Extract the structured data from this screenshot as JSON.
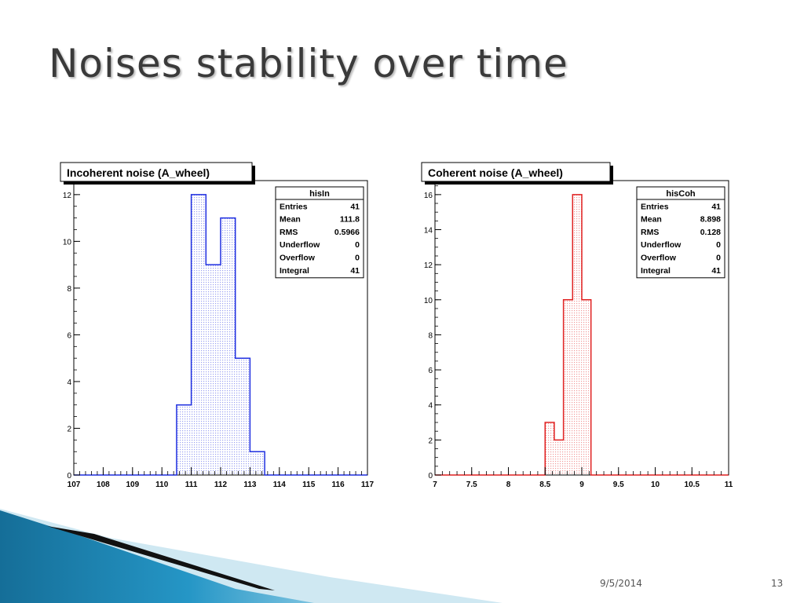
{
  "slide": {
    "title": "Noises stability over time",
    "date": "9/5/2014",
    "page_number": "13"
  },
  "colors": {
    "left_hist": "#1f2fe0",
    "right_hist": "#e02020",
    "decor_blue": "#1d87b5",
    "decor_light": "#bfe1ef"
  },
  "chart_data": [
    {
      "type": "bar",
      "title": "Incoherent noise (A_wheel)",
      "bin_edges": [
        107,
        107.5,
        108,
        108.5,
        109,
        109.5,
        110,
        110.5,
        111,
        111.5,
        112,
        112.5,
        113,
        113.5,
        114,
        114.5,
        115,
        115.5,
        116,
        116.5,
        117
      ],
      "values": [
        0,
        0,
        0,
        0,
        0,
        0,
        0,
        3,
        12,
        9,
        11,
        5,
        1,
        0,
        0,
        0,
        0,
        0,
        0,
        0
      ],
      "xlim": [
        107,
        117
      ],
      "ylim": [
        0,
        12.6
      ],
      "x_ticks": [
        "107",
        "108",
        "109",
        "110",
        "111",
        "112",
        "113",
        "114",
        "115",
        "116",
        "117"
      ],
      "y_ticks": [
        "0",
        "2",
        "4",
        "6",
        "8",
        "10",
        "12"
      ],
      "color": "#1f2fe0",
      "grid": false,
      "stats": {
        "name": "hisIn",
        "rows": [
          {
            "label": "Entries",
            "value": "41"
          },
          {
            "label": "Mean",
            "value": "111.8"
          },
          {
            "label": "RMS",
            "value": "0.5966"
          },
          {
            "label": "Underflow",
            "value": "0"
          },
          {
            "label": "Overflow",
            "value": "0"
          },
          {
            "label": "Integral",
            "value": "41"
          }
        ]
      }
    },
    {
      "type": "bar",
      "title": "Coherent noise (A_wheel)",
      "bin_edges": [
        7,
        7.125,
        7.25,
        7.375,
        7.5,
        7.625,
        7.75,
        7.875,
        8,
        8.125,
        8.25,
        8.375,
        8.5,
        8.625,
        8.75,
        8.875,
        9,
        9.125,
        9.25,
        9.375,
        9.5,
        9.625,
        9.75,
        9.875,
        10,
        10.125,
        10.25,
        10.375,
        10.5,
        10.625,
        10.75,
        10.875,
        11
      ],
      "values": [
        0,
        0,
        0,
        0,
        0,
        0,
        0,
        0,
        0,
        0,
        0,
        0,
        3,
        2,
        10,
        16,
        10,
        0,
        0,
        0,
        0,
        0,
        0,
        0,
        0,
        0,
        0,
        0,
        0,
        0,
        0,
        0
      ],
      "xlim": [
        7,
        11
      ],
      "ylim": [
        0,
        16.8
      ],
      "x_ticks": [
        "7",
        "7.5",
        "8",
        "8.5",
        "9",
        "9.5",
        "10",
        "10.5",
        "11"
      ],
      "y_ticks": [
        "0",
        "2",
        "4",
        "6",
        "8",
        "10",
        "12",
        "14",
        "16"
      ],
      "color": "#e02020",
      "grid": false,
      "stats": {
        "name": "hisCoh",
        "rows": [
          {
            "label": "Entries",
            "value": "41"
          },
          {
            "label": "Mean",
            "value": "8.898"
          },
          {
            "label": "RMS",
            "value": "0.128"
          },
          {
            "label": "Underflow",
            "value": "0"
          },
          {
            "label": "Overflow",
            "value": "0"
          },
          {
            "label": "Integral",
            "value": "41"
          }
        ]
      }
    }
  ]
}
